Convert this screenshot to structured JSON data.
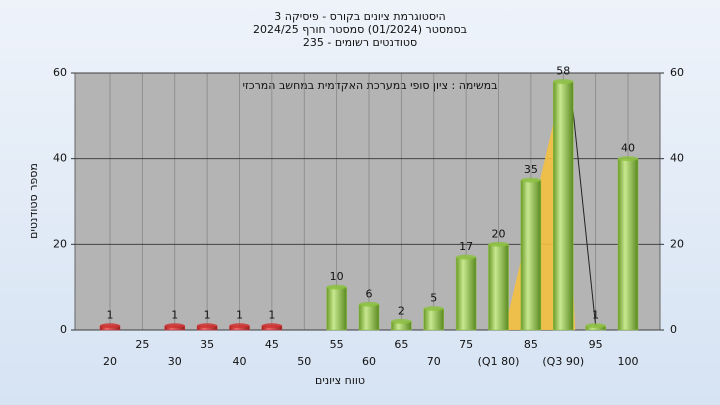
{
  "chart_data": {
    "type": "bar",
    "title": "היסטוגרמת ציונים בקורס - פיסיקה 3",
    "subtitle": [
      "בסמסטר  (01/2024)  סמסטר חורף 2024/25",
      "סטודנטים רשומים - 235"
    ],
    "annotation": "במשימה : ציון סופי במערכת האקדמית במחשב המרכזי",
    "x_label": "טווח ציונים",
    "y_label": "מספר סטודנטים",
    "categories": [
      "20",
      "25",
      "30",
      "35",
      "40",
      "45",
      "50",
      "55",
      "60",
      "65",
      "70",
      "75",
      "(Q1 80)",
      "85",
      "(Q3 90)",
      "95",
      "100"
    ],
    "values": [
      1,
      null,
      1,
      1,
      1,
      1,
      null,
      10,
      6,
      2,
      5,
      17,
      20,
      35,
      58,
      1,
      40
    ],
    "colors": [
      "#d03030",
      null,
      "#d03030",
      "#d03030",
      "#d03030",
      "#d03030",
      null,
      "#8cc040",
      "#8cc040",
      "#8cc040",
      "#8cc040",
      "#8cc040",
      "#8cc040",
      "#8cc040",
      "#8cc040",
      "#8cc040",
      "#8cc040"
    ],
    "ylim": [
      0,
      60
    ],
    "yticks": [
      0,
      20,
      40,
      60
    ],
    "y2lim": [
      0,
      60
    ],
    "y2ticks": [
      0,
      20,
      40,
      60
    ],
    "grid": true
  }
}
